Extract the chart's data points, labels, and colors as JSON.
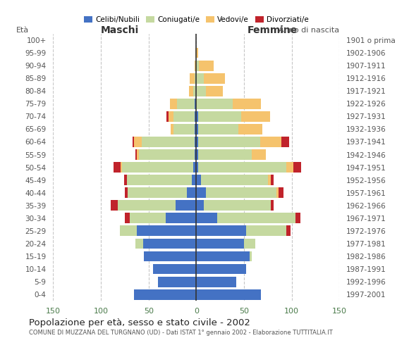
{
  "age_groups": [
    "0-4",
    "5-9",
    "10-14",
    "15-19",
    "20-24",
    "25-29",
    "30-34",
    "35-39",
    "40-44",
    "45-49",
    "50-54",
    "55-59",
    "60-64",
    "65-69",
    "70-74",
    "75-79",
    "80-84",
    "85-89",
    "90-94",
    "95-99",
    "100+"
  ],
  "birth_years": [
    "1997-2001",
    "1992-1996",
    "1987-1991",
    "1982-1986",
    "1977-1981",
    "1972-1976",
    "1967-1971",
    "1962-1966",
    "1957-1961",
    "1952-1956",
    "1947-1951",
    "1942-1946",
    "1937-1941",
    "1932-1936",
    "1927-1931",
    "1922-1926",
    "1917-1921",
    "1912-1916",
    "1907-1911",
    "1902-1906",
    "1901 o prima"
  ],
  "males_celibe": [
    65,
    40,
    45,
    55,
    56,
    62,
    32,
    22,
    10,
    5,
    3,
    2,
    2,
    2,
    2,
    2,
    0,
    0,
    0,
    0,
    0
  ],
  "males_coniugato": [
    0,
    0,
    0,
    0,
    8,
    18,
    38,
    60,
    62,
    68,
    75,
    58,
    55,
    22,
    22,
    18,
    3,
    2,
    0,
    0,
    0
  ],
  "males_vedovo": [
    0,
    0,
    0,
    0,
    0,
    0,
    0,
    0,
    0,
    0,
    1,
    2,
    8,
    3,
    5,
    8,
    5,
    5,
    2,
    1,
    0
  ],
  "males_divorziato": [
    0,
    0,
    0,
    0,
    0,
    0,
    5,
    8,
    3,
    3,
    8,
    2,
    2,
    0,
    2,
    0,
    0,
    0,
    0,
    0,
    0
  ],
  "females_nubile": [
    68,
    42,
    52,
    56,
    50,
    52,
    22,
    8,
    10,
    5,
    2,
    2,
    2,
    2,
    2,
    0,
    0,
    0,
    0,
    0,
    0
  ],
  "females_coniugata": [
    0,
    0,
    0,
    2,
    12,
    42,
    82,
    70,
    74,
    70,
    92,
    56,
    65,
    42,
    45,
    38,
    10,
    8,
    3,
    0,
    0
  ],
  "females_vedova": [
    0,
    0,
    0,
    0,
    0,
    0,
    0,
    0,
    2,
    3,
    8,
    15,
    22,
    25,
    30,
    30,
    18,
    22,
    15,
    2,
    0
  ],
  "females_divorziata": [
    0,
    0,
    0,
    0,
    0,
    5,
    5,
    3,
    5,
    3,
    8,
    0,
    8,
    0,
    0,
    0,
    0,
    0,
    0,
    0,
    0
  ],
  "color_celibe": "#4472c4",
  "color_coniugato": "#c5d9a0",
  "color_vedovo": "#f5c36d",
  "color_divorziato": "#c0232b",
  "title": "Popolazione per età, sesso e stato civile - 2002",
  "subtitle": "COMUNE DI MUZZANA DEL TURGNANO (UD) - Dati ISTAT 1° gennaio 2002 - Elaborazione TUTTITALIA.IT",
  "xlim": 150,
  "background": "#ffffff",
  "grid_color": "#b0b0b0"
}
